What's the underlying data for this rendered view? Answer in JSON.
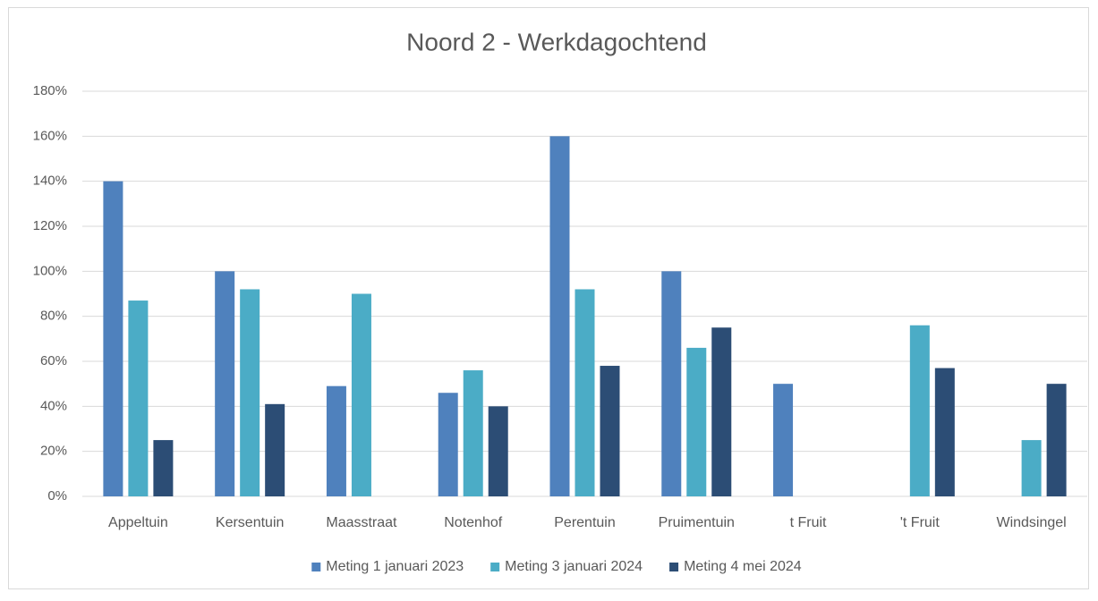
{
  "chart_data": {
    "type": "bar",
    "title": "Noord 2 - Werkdagochtend",
    "categories": [
      "Appeltuin",
      "Kersentuin",
      "Maasstraat",
      "Notenhof",
      "Perentuin",
      "Pruimentuin",
      "t Fruit",
      "'t Fruit",
      "Windsingel"
    ],
    "series": [
      {
        "name": "Meting 1 januari 2023",
        "color": "#4f81bd",
        "values": [
          140,
          100,
          49,
          46,
          160,
          100,
          50,
          null,
          null
        ]
      },
      {
        "name": "Meting 3 januari 2024",
        "color": "#4bacc6",
        "values": [
          87,
          92,
          90,
          56,
          92,
          66,
          null,
          76,
          25
        ]
      },
      {
        "name": "Meting 4 mei 2024",
        "color": "#2c4d75",
        "values": [
          25,
          41,
          null,
          40,
          58,
          75,
          null,
          57,
          50
        ]
      }
    ],
    "ylim": [
      0,
      180
    ],
    "yticks": [
      {
        "value": 0,
        "label": "0%"
      },
      {
        "value": 20,
        "label": "20%"
      },
      {
        "value": 40,
        "label": "40%"
      },
      {
        "value": 60,
        "label": "60%"
      },
      {
        "value": 80,
        "label": "80%"
      },
      {
        "value": 100,
        "label": "100%"
      },
      {
        "value": 120,
        "label": "120%"
      },
      {
        "value": 140,
        "label": "140%"
      },
      {
        "value": 160,
        "label": "160%"
      },
      {
        "value": 180,
        "label": "180%"
      }
    ],
    "grid": true,
    "legend": "bottom"
  }
}
